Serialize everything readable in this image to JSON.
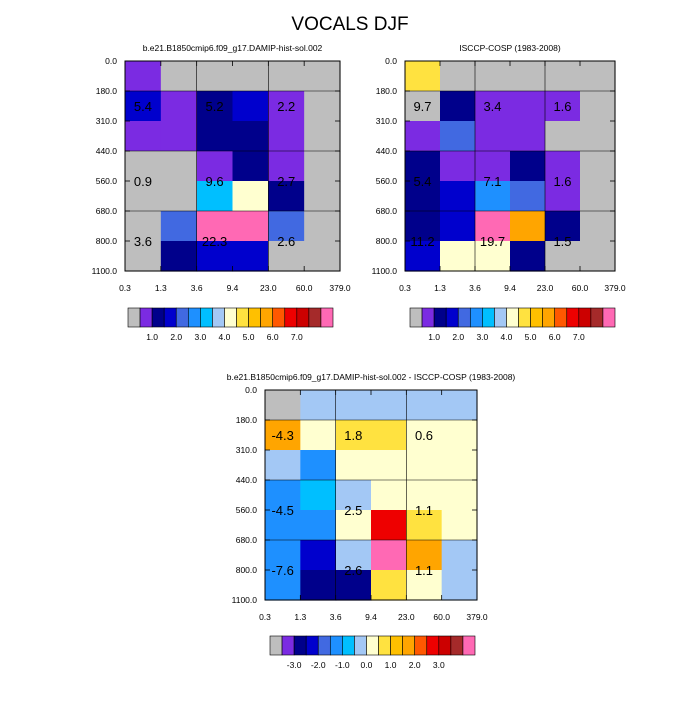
{
  "title": "VOCALS DJF",
  "palette": {
    "gray": "#BEBEBE",
    "violet": "#7B2BE2",
    "navy": "#00008B",
    "blue": "#0000CD",
    "royal": "#4169E1",
    "dodger": "#1E90FF",
    "sky": "#00BFFF",
    "lightblue": "#A3C8F5",
    "cream": "#FFFFD0",
    "yellow": "#FFE240",
    "gold": "#FFC000",
    "orange": "#FFA500",
    "orangered": "#FF5800",
    "red": "#EE0000",
    "darkred": "#CC0000",
    "brown": "#A52A2A",
    "pink": "#FF69B4"
  },
  "chart_data": [
    {
      "type": "heatmap",
      "title": "b.e21.B1850cmip6.f09_g17.DAMIP-hist-sol.002",
      "x_ticks": [
        "0.3",
        "1.3",
        "3.6",
        "9.4",
        "23.0",
        "60.0",
        "379.0"
      ],
      "y_ticks": [
        "0.0",
        "180.0",
        "310.0",
        "440.0",
        "560.0",
        "680.0",
        "800.0",
        "1100.0"
      ],
      "cell_colors": [
        [
          "violet",
          "gray",
          "gray",
          "gray",
          "gray",
          "gray"
        ],
        [
          "blue",
          "violet",
          "navy",
          "blue",
          "violet",
          "gray"
        ],
        [
          "violet",
          "violet",
          "navy",
          "navy",
          "violet",
          "gray"
        ],
        [
          "gray",
          "gray",
          "violet",
          "navy",
          "violet",
          "gray"
        ],
        [
          "gray",
          "gray",
          "sky",
          "cream",
          "navy",
          "gray"
        ],
        [
          "gray",
          "royal",
          "pink",
          "pink",
          "royal",
          "gray"
        ],
        [
          "gray",
          "navy",
          "blue",
          "blue",
          "gray",
          "gray"
        ]
      ],
      "annotations": [
        {
          "text": "5.4",
          "col": 0.5,
          "row": 1.5
        },
        {
          "text": "5.2",
          "col": 2.5,
          "row": 1.5
        },
        {
          "text": "2.2",
          "col": 4.5,
          "row": 1.5
        },
        {
          "text": "0.9",
          "col": 0.5,
          "row": 4
        },
        {
          "text": "9.6",
          "col": 2.5,
          "row": 4
        },
        {
          "text": "2.7",
          "col": 4.5,
          "row": 4
        },
        {
          "text": "3.6",
          "col": 0.5,
          "row": 6
        },
        {
          "text": "22.3",
          "col": 2.5,
          "row": 6
        },
        {
          "text": "2.6",
          "col": 4.5,
          "row": 6
        }
      ],
      "colorbar": {
        "colors": [
          "gray",
          "violet",
          "navy",
          "blue",
          "royal",
          "dodger",
          "sky",
          "lightblue",
          "cream",
          "yellow",
          "gold",
          "orange",
          "orangered",
          "red",
          "darkred",
          "brown",
          "pink"
        ],
        "labels": [
          {
            "text": "1.0",
            "boundary": 2
          },
          {
            "text": "2.0",
            "boundary": 4
          },
          {
            "text": "3.0",
            "boundary": 6
          },
          {
            "text": "4.0",
            "boundary": 8
          },
          {
            "text": "5.0",
            "boundary": 10
          },
          {
            "text": "6.0",
            "boundary": 12
          },
          {
            "text": "7.0",
            "boundary": 14
          }
        ]
      }
    },
    {
      "type": "heatmap",
      "title": "ISCCP-COSP (1983-2008)",
      "x_ticks": [
        "0.3",
        "1.3",
        "3.6",
        "9.4",
        "23.0",
        "60.0",
        "379.0"
      ],
      "y_ticks": [
        "0.0",
        "180.0",
        "310.0",
        "440.0",
        "560.0",
        "680.0",
        "800.0",
        "1100.0"
      ],
      "cell_colors": [
        [
          "yellow",
          "gray",
          "gray",
          "gray",
          "gray",
          "gray"
        ],
        [
          "gray",
          "navy",
          "violet",
          "violet",
          "violet",
          "gray"
        ],
        [
          "violet",
          "royal",
          "violet",
          "violet",
          "gray",
          "gray"
        ],
        [
          "navy",
          "violet",
          "violet",
          "navy",
          "violet",
          "gray"
        ],
        [
          "navy",
          "blue",
          "dodger",
          "royal",
          "violet",
          "gray"
        ],
        [
          "navy",
          "blue",
          "pink",
          "orange",
          "navy",
          "gray"
        ],
        [
          "blue",
          "cream",
          "cream",
          "navy",
          "gray",
          "gray"
        ]
      ],
      "annotations": [
        {
          "text": "9.7",
          "col": 0.5,
          "row": 1.5
        },
        {
          "text": "3.4",
          "col": 2.5,
          "row": 1.5
        },
        {
          "text": "1.6",
          "col": 4.5,
          "row": 1.5
        },
        {
          "text": "5.4",
          "col": 0.5,
          "row": 4
        },
        {
          "text": "7.1",
          "col": 2.5,
          "row": 4
        },
        {
          "text": "1.6",
          "col": 4.5,
          "row": 4
        },
        {
          "text": "11.2",
          "col": 0.5,
          "row": 6
        },
        {
          "text": "19.7",
          "col": 2.5,
          "row": 6
        },
        {
          "text": "1.5",
          "col": 4.5,
          "row": 6
        }
      ],
      "colorbar": {
        "colors": [
          "gray",
          "violet",
          "navy",
          "blue",
          "royal",
          "dodger",
          "sky",
          "lightblue",
          "cream",
          "yellow",
          "gold",
          "orange",
          "orangered",
          "red",
          "darkred",
          "brown",
          "pink"
        ],
        "labels": [
          {
            "text": "1.0",
            "boundary": 2
          },
          {
            "text": "2.0",
            "boundary": 4
          },
          {
            "text": "3.0",
            "boundary": 6
          },
          {
            "text": "4.0",
            "boundary": 8
          },
          {
            "text": "5.0",
            "boundary": 10
          },
          {
            "text": "6.0",
            "boundary": 12
          },
          {
            "text": "7.0",
            "boundary": 14
          }
        ]
      }
    },
    {
      "type": "heatmap",
      "title": "b.e21.B1850cmip6.f09_g17.DAMIP-hist-sol.002 - ISCCP-COSP (1983-2008)",
      "x_ticks": [
        "0.3",
        "1.3",
        "3.6",
        "9.4",
        "23.0",
        "60.0",
        "379.0"
      ],
      "y_ticks": [
        "0.0",
        "180.0",
        "310.0",
        "440.0",
        "560.0",
        "680.0",
        "800.0",
        "1100.0"
      ],
      "cell_colors": [
        [
          "gray",
          "lightblue",
          "lightblue",
          "lightblue",
          "lightblue",
          "lightblue"
        ],
        [
          "orange",
          "cream",
          "yellow",
          "yellow",
          "cream",
          "cream"
        ],
        [
          "lightblue",
          "dodger",
          "cream",
          "cream",
          "cream",
          "cream"
        ],
        [
          "dodger",
          "sky",
          "lightblue",
          "cream",
          "cream",
          "cream"
        ],
        [
          "dodger",
          "dodger",
          "cream",
          "red",
          "yellow",
          "cream"
        ],
        [
          "dodger",
          "blue",
          "lightblue",
          "pink",
          "orange",
          "lightblue"
        ],
        [
          "dodger",
          "navy",
          "navy",
          "yellow",
          "cream",
          "lightblue"
        ]
      ],
      "annotations": [
        {
          "text": "-4.3",
          "col": 0.5,
          "row": 1.5
        },
        {
          "text": "1.8",
          "col": 2.5,
          "row": 1.5
        },
        {
          "text": "0.6",
          "col": 4.5,
          "row": 1.5
        },
        {
          "text": "-4.5",
          "col": 0.5,
          "row": 4
        },
        {
          "text": "2.5",
          "col": 2.5,
          "row": 4
        },
        {
          "text": "1.1",
          "col": 4.5,
          "row": 4
        },
        {
          "text": "-7.6",
          "col": 0.5,
          "row": 6
        },
        {
          "text": "2.6",
          "col": 2.5,
          "row": 6
        },
        {
          "text": "1.1",
          "col": 4.5,
          "row": 6
        }
      ],
      "colorbar": {
        "colors": [
          "gray",
          "violet",
          "navy",
          "blue",
          "royal",
          "dodger",
          "sky",
          "lightblue",
          "cream",
          "yellow",
          "gold",
          "orange",
          "orangered",
          "red",
          "darkred",
          "brown",
          "pink"
        ],
        "labels": [
          {
            "text": "-3.0",
            "boundary": 2
          },
          {
            "text": "-2.0",
            "boundary": 4
          },
          {
            "text": "-1.0",
            "boundary": 6
          },
          {
            "text": "0.0",
            "boundary": 8
          },
          {
            "text": "1.0",
            "boundary": 10
          },
          {
            "text": "2.0",
            "boundary": 12
          },
          {
            "text": "3.0",
            "boundary": 14
          }
        ]
      }
    }
  ]
}
